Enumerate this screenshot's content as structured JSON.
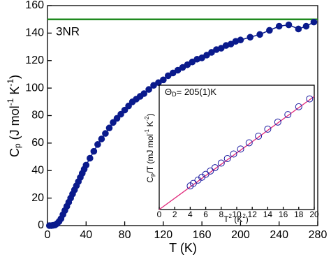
{
  "chart_data": [
    {
      "type": "line",
      "x": [
        2,
        4,
        6,
        8,
        10,
        12,
        14,
        16,
        18,
        20,
        22,
        24,
        26,
        28,
        30,
        32,
        34,
        36,
        38,
        40,
        44,
        48,
        52,
        56,
        60,
        64,
        68,
        72,
        76,
        80,
        84,
        88,
        92,
        96,
        100,
        105,
        110,
        115,
        120,
        125,
        130,
        135,
        140,
        145,
        150,
        155,
        160,
        165,
        170,
        175,
        180,
        185,
        190,
        195,
        200,
        210,
        220,
        230,
        240,
        250,
        260,
        268,
        276
      ],
      "values": [
        0,
        0,
        0.2,
        0.5,
        1.5,
        3,
        5,
        8,
        11,
        14,
        17,
        20,
        23,
        26,
        29,
        32,
        35,
        38,
        41,
        44,
        49,
        54,
        59,
        63,
        67,
        71,
        75,
        78,
        81,
        84,
        87,
        90,
        92,
        94,
        96,
        99,
        102,
        104,
        106,
        109,
        111,
        113,
        115,
        117,
        119,
        121,
        122,
        124,
        126,
        128,
        129,
        131,
        132,
        134,
        135,
        137,
        139,
        142,
        145,
        146,
        143,
        145,
        148
      ],
      "color": "#0a1a8c",
      "hline": {
        "value": 150,
        "color": "#1f8a1f"
      },
      "annotation": "3NR",
      "xlabel": "T (K)",
      "ylabel": [
        "C",
        "p",
        " (J mol",
        "-1",
        " K",
        "-1",
        ")"
      ],
      "xlim": [
        0,
        280
      ],
      "xticks": [
        0,
        40,
        80,
        120,
        160,
        200,
        240,
        280
      ],
      "ylim": [
        0,
        160
      ],
      "yticks": [
        0,
        20,
        40,
        60,
        80,
        100,
        120,
        140,
        160
      ]
    },
    {
      "type": "scatter",
      "x": [
        4,
        4.4,
        5,
        5.5,
        6,
        6.6,
        7.2,
        8,
        8.8,
        9.6,
        10.5,
        11.6,
        12.8,
        14,
        15.3,
        16.6,
        18,
        19.4
      ],
      "values": [
        5.7,
        6.3,
        7.1,
        7.8,
        8.5,
        9.3,
        10.1,
        11.2,
        12.3,
        13.4,
        14.6,
        16.1,
        17.7,
        19.4,
        21.1,
        22.9,
        24.8,
        26.7
      ],
      "color": "#1a1aa0",
      "fit": {
        "x": [
          0,
          20
        ],
        "values": [
          0,
          27.3
        ],
        "color": "#e0287a"
      },
      "annotation": [
        "Θ",
        "D",
        "= 205(1)K"
      ],
      "annotation_color": "#e01010",
      "xlabel": [
        "T",
        "2",
        " (K",
        "2",
        ")"
      ],
      "ylabel": [
        "C",
        "p",
        "/T (mJ mol",
        "-1",
        " K",
        "-2",
        ")"
      ],
      "xlim": [
        0,
        20
      ],
      "xticks": [
        0,
        2,
        4,
        6,
        8,
        10,
        12,
        14,
        16,
        18,
        20
      ],
      "ylim": [
        0,
        30
      ]
    }
  ]
}
